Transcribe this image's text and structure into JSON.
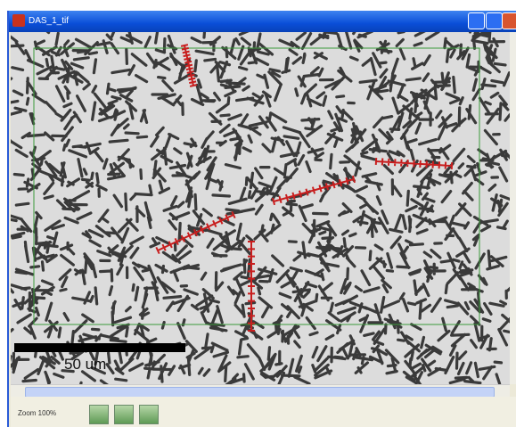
{
  "window": {
    "title": "DAS_1_tif"
  },
  "image": {
    "scale_bar_label": "50 um"
  },
  "status": {
    "zoom": "Zoom 100%"
  }
}
